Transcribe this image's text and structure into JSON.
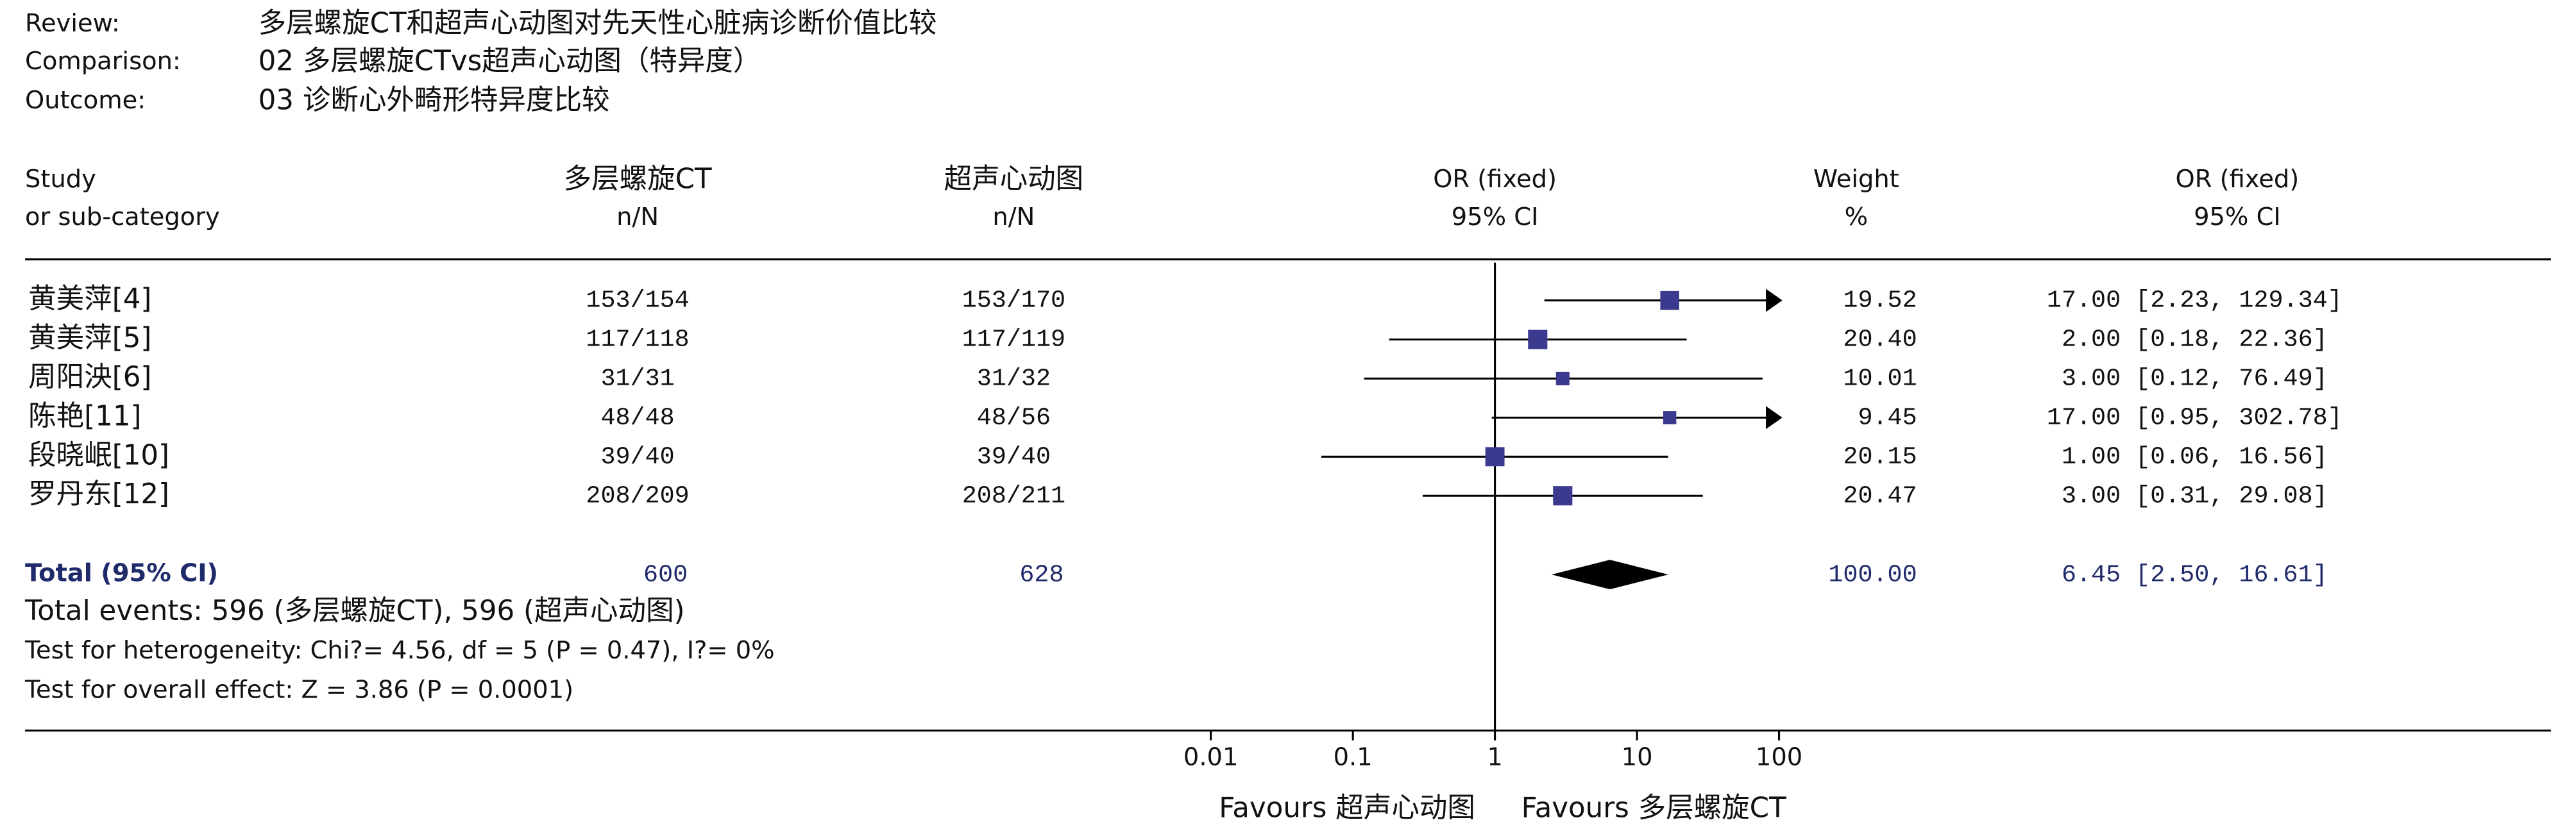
{
  "header": {
    "review_label": "Review:",
    "review": "多层螺旋CT和超声心动图对先天性心脏病诊断价值比较",
    "comparison_label": "Comparison:",
    "comparison": "02 多层螺旋CTvs超声心动图（特异度）",
    "outcome_label": "Outcome:",
    "outcome": "03 诊断心外畸形特异度比较"
  },
  "columns": {
    "study": [
      "Study",
      "or sub-category"
    ],
    "group1": [
      "多层螺旋CT",
      "n/N"
    ],
    "group2": [
      "超声心动图",
      "n/N"
    ],
    "plot": [
      "OR (fixed)",
      "95% CI"
    ],
    "weight": [
      "Weight",
      "%"
    ],
    "effect": [
      "OR (fixed)",
      "95% CI"
    ]
  },
  "chart_data": {
    "type": "forest",
    "studies": [
      "黄美萍[4]",
      "黄美萍[5]",
      "周阳泱[6]",
      "陈艳[11]",
      "段晓岷[10]",
      "罗丹东[12]"
    ],
    "group1": [
      "153/154",
      "117/118",
      "31/31",
      "48/48",
      "39/40",
      "208/209"
    ],
    "group2": [
      "153/170",
      "117/119",
      "31/32",
      "48/56",
      "39/40",
      "208/211"
    ],
    "values": [
      17,
      2,
      3,
      17,
      1,
      3
    ],
    "value_labels": [
      "17.00",
      "2.00",
      "3.00",
      "17.00",
      "1.00",
      "3.00"
    ],
    "ci_low": [
      2.23,
      0.18,
      0.12,
      0.95,
      0.06,
      0.31
    ],
    "ci_high": [
      129.34,
      22.36,
      76.49,
      302.78,
      16.56,
      29.08
    ],
    "ci_labels": [
      "[2.23, 129.34]",
      "[0.18, 22.36]",
      "[0.12, 76.49]",
      "[0.95, 302.78]",
      "[0.06, 16.56]",
      "[0.31, 29.08]"
    ],
    "weights": [
      19.52,
      20.4,
      10.01,
      9.45,
      20.15,
      20.47
    ],
    "weight_labels": [
      "19.52",
      "20.40",
      "10.01",
      "9.45",
      "20.15",
      "20.47"
    ],
    "total": {
      "label": "Total (95% CI)",
      "group1": 600,
      "group2": 628,
      "value": 6.45,
      "value_label": "6.45",
      "ci_low": 2.5,
      "ci_high": 16.61,
      "ci_label": "[2.50, 16.61]",
      "weight": 100,
      "weight_label": "100.00"
    },
    "xlim": [
      0.01,
      100
    ],
    "xticks": [
      0.01,
      0.1,
      1,
      10,
      100
    ],
    "log_x": true,
    "favours_left": "Favours 超声心动图",
    "favours_right": "Favours 多层螺旋CT",
    "marker_color": "#3c3a8e",
    "total_color": "#1f2a6b"
  },
  "footer": [
    "Total events: 596 (多层螺旋CT), 596 (超声心动图)",
    "Test for heterogeneity: Chi?= 4.56, df = 5 (P = 0.47), I?= 0%",
    "Test for overall effect: Z = 3.86 (P = 0.0001)"
  ]
}
